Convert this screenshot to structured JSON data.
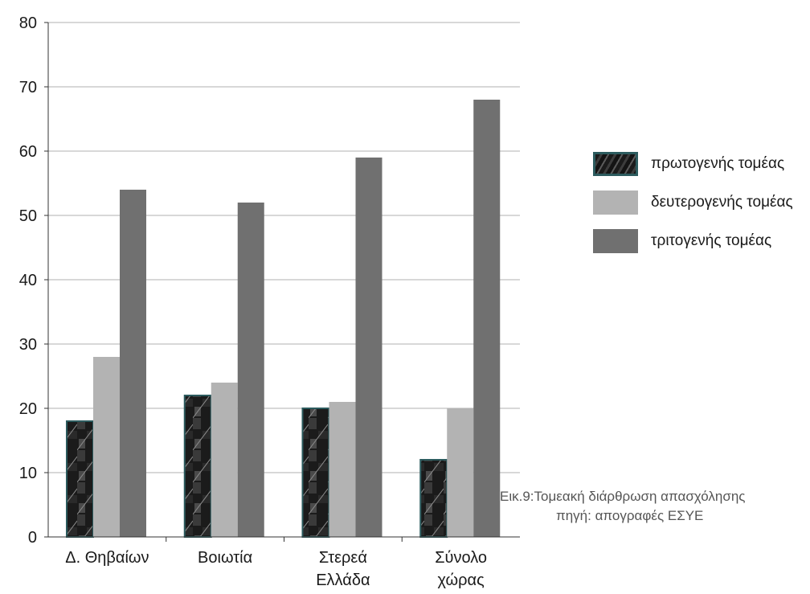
{
  "chart_data": {
    "type": "bar",
    "categories": [
      [
        "Δ. Θηβαίων"
      ],
      [
        "Βοιωτία"
      ],
      [
        "Στερεά",
        "Ελλάδα"
      ],
      [
        "Σύνολο",
        "χώρας"
      ]
    ],
    "series": [
      {
        "name": "πρωτογενής τομέας",
        "values": [
          18,
          22,
          20,
          12
        ],
        "color": "#1f1f1f"
      },
      {
        "name": "δευτερογενής τομέας",
        "values": [
          28,
          24,
          21,
          20
        ],
        "color": "#b3b3b3"
      },
      {
        "name": "τριτογενής τομέας",
        "values": [
          54,
          52,
          59,
          68
        ],
        "color": "#707070"
      }
    ],
    "ylim": [
      0,
      80
    ],
    "yticks": [
      0,
      10,
      20,
      30,
      40,
      50,
      60,
      70,
      80
    ],
    "grid": true,
    "legend_position": "right"
  },
  "caption": {
    "line1": "Εικ.9:Τομεακή διάρθρωση απασχόλησης",
    "line2": "πηγή: απογραφές ΕΣΥΕ"
  },
  "colors": {
    "grid": "#b0b0b0",
    "axis": "#333333",
    "bar_outline_primary": "#2c5b5e"
  }
}
